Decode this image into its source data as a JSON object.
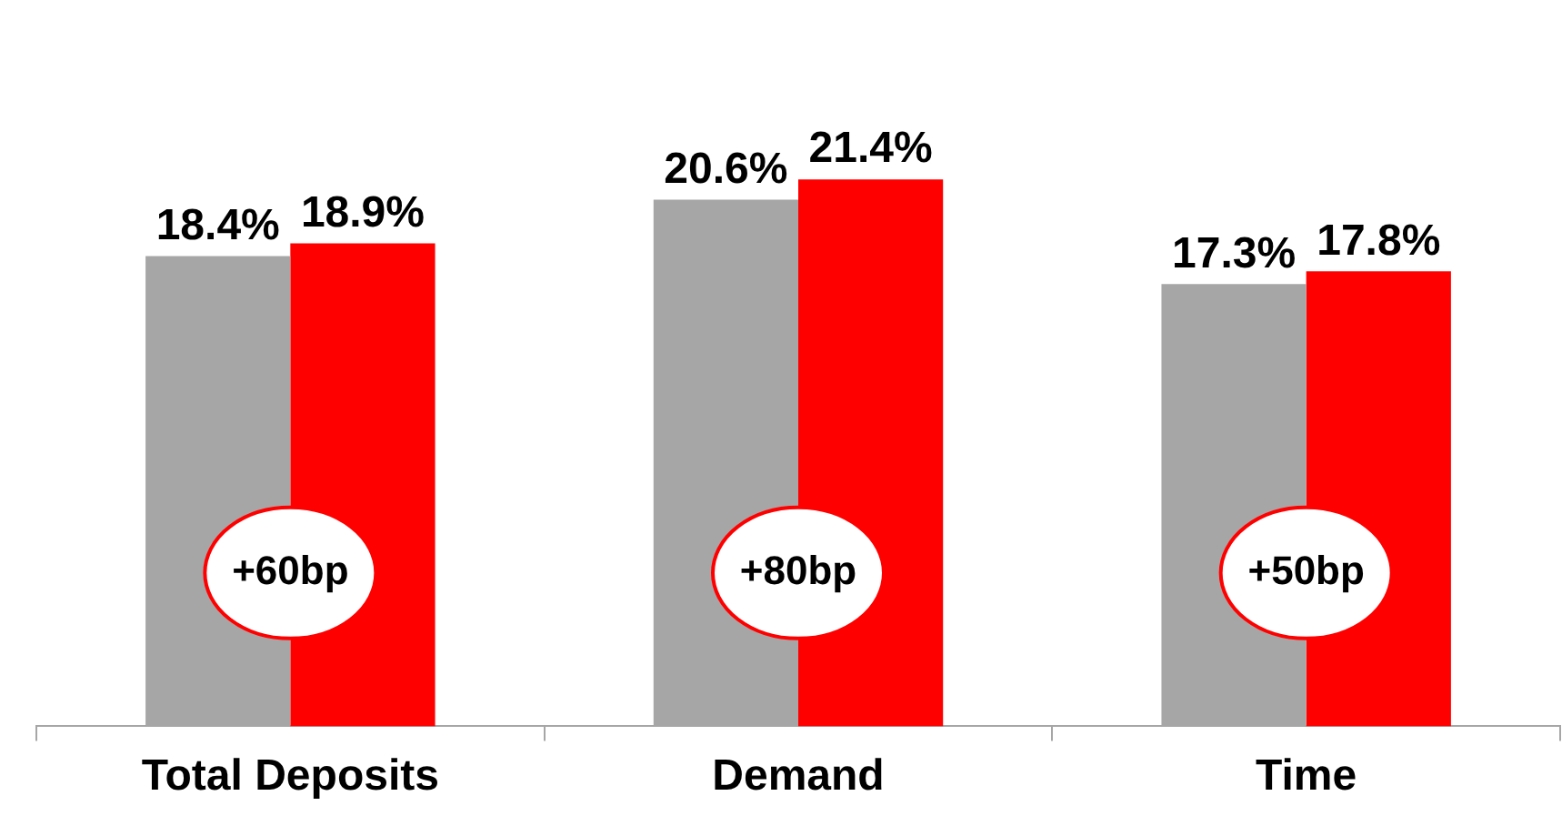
{
  "chart_data": {
    "type": "bar",
    "categories": [
      "Total Deposits",
      "Demand",
      "Time"
    ],
    "series": [
      {
        "color": "#a6a6a6",
        "values": [
          18.4,
          20.6,
          17.3
        ],
        "value_labels": [
          "18.4%",
          "20.6%",
          "17.3%"
        ]
      },
      {
        "color": "#ff0000",
        "values": [
          18.9,
          21.4,
          17.8
        ],
        "value_labels": [
          "18.9%",
          "21.4%",
          "17.8%"
        ]
      }
    ],
    "tick_labels": "x",
    "grid": false,
    "legend": false,
    "annotations": [
      {
        "text": "+60bp",
        "x": "Total Deposits",
        "y": 6
      },
      {
        "text": "+80bp",
        "x": "Demand",
        "y": 6
      },
      {
        "text": "+50bp",
        "x": "Time",
        "y": 6
      }
    ]
  }
}
